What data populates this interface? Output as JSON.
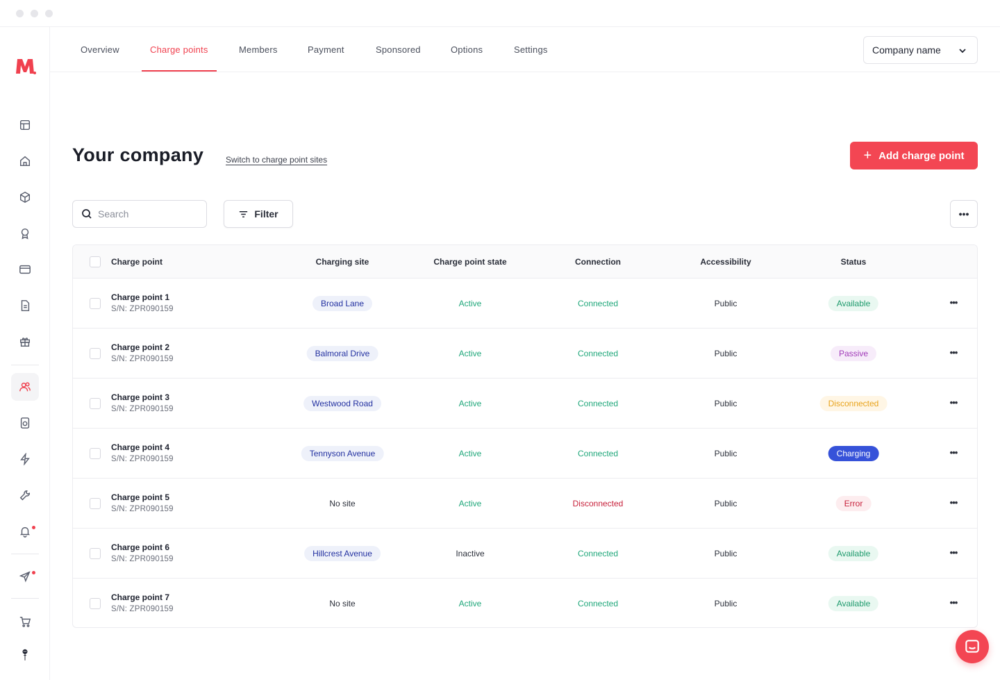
{
  "tabs": [
    {
      "label": "Overview",
      "active": false
    },
    {
      "label": "Charge points",
      "active": true
    },
    {
      "label": "Members",
      "active": false
    },
    {
      "label": "Payment",
      "active": false
    },
    {
      "label": "Sponsored",
      "active": false
    },
    {
      "label": "Options",
      "active": false
    },
    {
      "label": "Settings",
      "active": false
    }
  ],
  "company_select": {
    "value": "Company name"
  },
  "page": {
    "title": "Your company",
    "switch_link": "Switch to charge point sites",
    "add_button": "Add charge point"
  },
  "toolbar": {
    "search_placeholder": "Search",
    "filter_label": "Filter",
    "more_label": "•••"
  },
  "table": {
    "headers": {
      "charge_point": "Charge point",
      "charging_site": "Charging site",
      "state": "Charge point state",
      "connection": "Connection",
      "accessibility": "Accessibility",
      "status": "Status"
    },
    "rows": [
      {
        "name": "Charge point 1",
        "sn": "S/N: ZPR090159",
        "site": "Broad Lane",
        "state": "Active",
        "connection": "Connected",
        "accessibility": "Public",
        "status": "Available"
      },
      {
        "name": "Charge point 2",
        "sn": "S/N: ZPR090159",
        "site": "Balmoral Drive",
        "state": "Active",
        "connection": "Connected",
        "accessibility": "Public",
        "status": "Passive"
      },
      {
        "name": "Charge point 3",
        "sn": "S/N: ZPR090159",
        "site": "Westwood Road",
        "state": "Active",
        "connection": "Connected",
        "accessibility": "Public",
        "status": "Disconnected"
      },
      {
        "name": "Charge point 4",
        "sn": "S/N: ZPR090159",
        "site": "Tennyson Avenue",
        "state": "Active",
        "connection": "Connected",
        "accessibility": "Public",
        "status": "Charging"
      },
      {
        "name": "Charge point 5",
        "sn": "S/N: ZPR090159",
        "site": "No site",
        "state": "Active",
        "connection": "Disconnected",
        "accessibility": "Public",
        "status": "Error"
      },
      {
        "name": "Charge point 6",
        "sn": "S/N: ZPR090159",
        "site": "Hillcrest Avenue",
        "state": "Inactive",
        "connection": "Connected",
        "accessibility": "Public",
        "status": "Available"
      },
      {
        "name": "Charge point 7",
        "sn": "S/N: ZPR090159",
        "site": "No site",
        "state": "Active",
        "connection": "Connected",
        "accessibility": "Public",
        "status": "Available"
      }
    ],
    "row_more_label": "•••"
  },
  "sidebar": {
    "icons": [
      "layout-icon",
      "home-icon",
      "box-icon",
      "award-icon",
      "credit-card-icon",
      "document-icon",
      "gift-icon",
      "users-icon",
      "device-icon",
      "bolt-icon",
      "wrench-icon",
      "bell-icon",
      "send-icon",
      "cart-icon",
      "mascot-icon"
    ],
    "active": "users-icon"
  },
  "colors": {
    "accent": "#f34653",
    "success": "#1fa77a",
    "danger": "#c7203a",
    "charging": "#3652d9"
  }
}
